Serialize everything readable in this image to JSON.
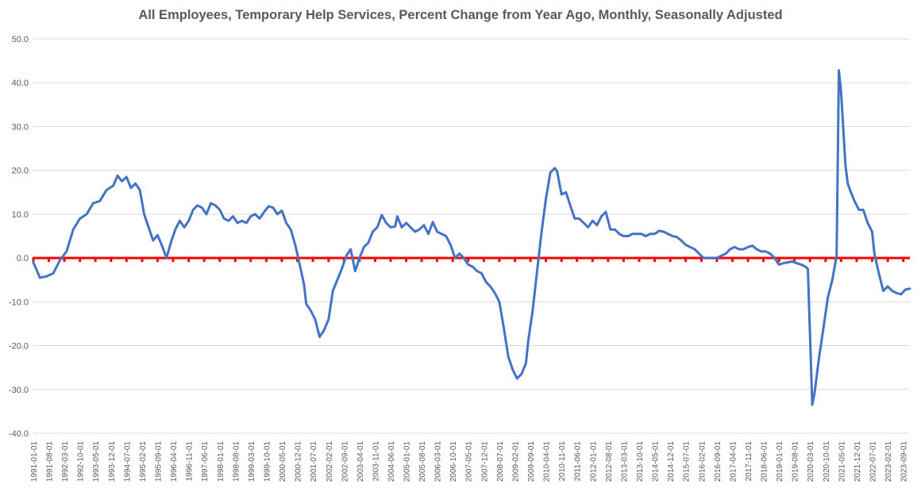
{
  "chart_data": {
    "type": "line",
    "title": "All Employees, Temporary Help Services, Percent Change from Year Ago, Monthly, Seasonally Adjusted",
    "xlabel": "",
    "ylabel": "",
    "ylim": [
      -40,
      50
    ],
    "yticks": [
      "50.0",
      "40.0",
      "30.0",
      "20.0",
      "10.0",
      "0.0",
      "-10.0",
      "-20.0",
      "-30.0",
      "-40.0"
    ],
    "xticks": [
      "1991-01-01",
      "1991-08-01",
      "1992-03-01",
      "1992-10-01",
      "1993-05-01",
      "1993-12-01",
      "1994-07-01",
      "1995-02-01",
      "1995-09-01",
      "1996-04-01",
      "1996-11-01",
      "1997-06-01",
      "1998-01-01",
      "1998-08-01",
      "1999-03-01",
      "1999-10-01",
      "2000-05-01",
      "2000-12-01",
      "2001-07-01",
      "2002-02-01",
      "2002-09-01",
      "2003-04-01",
      "2003-11-01",
      "2004-06-01",
      "2005-01-01",
      "2005-08-01",
      "2006-03-01",
      "2006-10-01",
      "2007-05-01",
      "2007-12-01",
      "2008-07-01",
      "2009-02-01",
      "2009-09-01",
      "2010-04-01",
      "2010-11-01",
      "2011-06-01",
      "2012-01-01",
      "2012-08-01",
      "2013-03-01",
      "2013-10-01",
      "2014-05-01",
      "2014-12-01",
      "2015-07-01",
      "2016-02-01",
      "2016-09-01",
      "2017-04-01",
      "2017-11-01",
      "2018-06-01",
      "2019-01-01",
      "2019-08-01",
      "2020-03-01",
      "2020-10-01",
      "2021-05-01",
      "2021-12-01",
      "2022-07-01",
      "2023-02-01",
      "2023-09-01"
    ],
    "grid": true,
    "legend": "none",
    "reference_line": {
      "y": 0,
      "color": "#ff0000",
      "style": "solid"
    },
    "series": [
      {
        "color": "#4472c4",
        "points": [
          [
            "1991-01-01",
            -1.0
          ],
          [
            "1991-04-01",
            -4.5
          ],
          [
            "1991-07-01",
            -4.2
          ],
          [
            "1991-10-01",
            -3.5
          ],
          [
            "1992-01-01",
            -0.5
          ],
          [
            "1992-04-01",
            1.5
          ],
          [
            "1992-07-01",
            6.5
          ],
          [
            "1992-10-01",
            9.0
          ],
          [
            "1993-01-01",
            10.0
          ],
          [
            "1993-04-01",
            12.5
          ],
          [
            "1993-07-01",
            13.0
          ],
          [
            "1993-10-01",
            15.5
          ],
          [
            "1994-01-01",
            16.5
          ],
          [
            "1994-03-01",
            18.8
          ],
          [
            "1994-05-01",
            17.5
          ],
          [
            "1994-07-01",
            18.5
          ],
          [
            "1994-09-01",
            16.0
          ],
          [
            "1994-11-01",
            17.0
          ],
          [
            "1995-01-01",
            15.5
          ],
          [
            "1995-03-01",
            10.0
          ],
          [
            "1995-05-01",
            7.0
          ],
          [
            "1995-07-01",
            4.0
          ],
          [
            "1995-09-01",
            5.2
          ],
          [
            "1995-11-01",
            2.8
          ],
          [
            "1996-01-01",
            0.0
          ],
          [
            "1996-03-01",
            3.5
          ],
          [
            "1996-05-01",
            6.5
          ],
          [
            "1996-07-01",
            8.5
          ],
          [
            "1996-09-01",
            7.0
          ],
          [
            "1996-11-01",
            8.5
          ],
          [
            "1997-01-01",
            11.0
          ],
          [
            "1997-03-01",
            12.0
          ],
          [
            "1997-05-01",
            11.5
          ],
          [
            "1997-07-01",
            10.0
          ],
          [
            "1997-09-01",
            12.5
          ],
          [
            "1997-11-01",
            12.0
          ],
          [
            "1998-01-01",
            11.0
          ],
          [
            "1998-03-01",
            9.0
          ],
          [
            "1998-05-01",
            8.5
          ],
          [
            "1998-07-01",
            9.5
          ],
          [
            "1998-09-01",
            8.0
          ],
          [
            "1998-11-01",
            8.5
          ],
          [
            "1999-01-01",
            8.0
          ],
          [
            "1999-03-01",
            9.5
          ],
          [
            "1999-05-01",
            10.0
          ],
          [
            "1999-07-01",
            9.0
          ],
          [
            "1999-09-01",
            10.5
          ],
          [
            "1999-11-01",
            11.8
          ],
          [
            "2000-01-01",
            11.5
          ],
          [
            "2000-03-01",
            10.0
          ],
          [
            "2000-05-01",
            10.8
          ],
          [
            "2000-07-01",
            8.0
          ],
          [
            "2000-09-01",
            6.5
          ],
          [
            "2000-11-01",
            3.0
          ],
          [
            "2001-01-01",
            -1.5
          ],
          [
            "2001-03-01",
            -6.0
          ],
          [
            "2001-04-01",
            -10.5
          ],
          [
            "2001-06-01",
            -12.0
          ],
          [
            "2001-08-01",
            -14.0
          ],
          [
            "2001-10-01",
            -18.0
          ],
          [
            "2001-12-01",
            -16.5
          ],
          [
            "2002-02-01",
            -14.0
          ],
          [
            "2002-04-01",
            -7.5
          ],
          [
            "2002-06-01",
            -5.0
          ],
          [
            "2002-08-01",
            -2.5
          ],
          [
            "2002-10-01",
            0.5
          ],
          [
            "2002-12-01",
            2.0
          ],
          [
            "2003-02-01",
            -3.0
          ],
          [
            "2003-04-01",
            0.0
          ],
          [
            "2003-06-01",
            2.5
          ],
          [
            "2003-08-01",
            3.5
          ],
          [
            "2003-10-01",
            6.0
          ],
          [
            "2003-12-01",
            7.0
          ],
          [
            "2004-02-01",
            9.8
          ],
          [
            "2004-04-01",
            8.0
          ],
          [
            "2004-06-01",
            7.0
          ],
          [
            "2004-08-01",
            7.2
          ],
          [
            "2004-09-01",
            9.5
          ],
          [
            "2004-11-01",
            7.0
          ],
          [
            "2005-01-01",
            8.0
          ],
          [
            "2005-03-01",
            7.0
          ],
          [
            "2005-05-01",
            6.0
          ],
          [
            "2005-07-01",
            6.5
          ],
          [
            "2005-09-01",
            7.5
          ],
          [
            "2005-11-01",
            5.5
          ],
          [
            "2006-01-01",
            8.2
          ],
          [
            "2006-03-01",
            6.0
          ],
          [
            "2006-05-01",
            5.5
          ],
          [
            "2006-07-01",
            5.0
          ],
          [
            "2006-09-01",
            3.0
          ],
          [
            "2006-11-01",
            0.0
          ],
          [
            "2007-01-01",
            1.0
          ],
          [
            "2007-03-01",
            0.0
          ],
          [
            "2007-05-01",
            -1.5
          ],
          [
            "2007-07-01",
            -2.0
          ],
          [
            "2007-09-01",
            -3.0
          ],
          [
            "2007-11-01",
            -3.5
          ],
          [
            "2008-01-01",
            -5.5
          ],
          [
            "2008-03-01",
            -6.5
          ],
          [
            "2008-05-01",
            -8.0
          ],
          [
            "2008-07-01",
            -10.0
          ],
          [
            "2008-09-01",
            -16.0
          ],
          [
            "2008-11-01",
            -22.5
          ],
          [
            "2009-01-01",
            -25.5
          ],
          [
            "2009-03-01",
            -27.5
          ],
          [
            "2009-05-01",
            -26.5
          ],
          [
            "2009-07-01",
            -24.0
          ],
          [
            "2009-08-01",
            -19.0
          ],
          [
            "2009-10-01",
            -12.0
          ],
          [
            "2009-12-01",
            -3.0
          ],
          [
            "2010-02-01",
            6.0
          ],
          [
            "2010-04-01",
            13.5
          ],
          [
            "2010-06-01",
            19.5
          ],
          [
            "2010-08-01",
            20.5
          ],
          [
            "2010-09-01",
            19.8
          ],
          [
            "2010-11-01",
            14.5
          ],
          [
            "2011-01-01",
            15.0
          ],
          [
            "2011-03-01",
            12.0
          ],
          [
            "2011-05-01",
            9.0
          ],
          [
            "2011-07-01",
            9.0
          ],
          [
            "2011-09-01",
            8.0
          ],
          [
            "2011-11-01",
            7.0
          ],
          [
            "2012-01-01",
            8.5
          ],
          [
            "2012-03-01",
            7.5
          ],
          [
            "2012-05-01",
            9.5
          ],
          [
            "2012-07-01",
            10.5
          ],
          [
            "2012-09-01",
            6.5
          ],
          [
            "2012-11-01",
            6.5
          ],
          [
            "2013-01-01",
            5.5
          ],
          [
            "2013-03-01",
            5.0
          ],
          [
            "2013-05-01",
            5.0
          ],
          [
            "2013-07-01",
            5.5
          ],
          [
            "2013-09-01",
            5.5
          ],
          [
            "2013-11-01",
            5.5
          ],
          [
            "2014-01-01",
            5.0
          ],
          [
            "2014-03-01",
            5.5
          ],
          [
            "2014-05-01",
            5.5
          ],
          [
            "2014-07-01",
            6.2
          ],
          [
            "2014-09-01",
            6.0
          ],
          [
            "2014-11-01",
            5.5
          ],
          [
            "2015-01-01",
            5.0
          ],
          [
            "2015-03-01",
            4.8
          ],
          [
            "2015-05-01",
            4.0
          ],
          [
            "2015-07-01",
            3.0
          ],
          [
            "2015-09-01",
            2.5
          ],
          [
            "2015-11-01",
            2.0
          ],
          [
            "2016-01-01",
            1.0
          ],
          [
            "2016-03-01",
            0.0
          ],
          [
            "2016-05-01",
            0.0
          ],
          [
            "2016-07-01",
            0.0
          ],
          [
            "2016-09-01",
            0.0
          ],
          [
            "2016-11-01",
            0.5
          ],
          [
            "2017-01-01",
            1.0
          ],
          [
            "2017-03-01",
            2.0
          ],
          [
            "2017-05-01",
            2.5
          ],
          [
            "2017-07-01",
            2.0
          ],
          [
            "2017-09-01",
            2.0
          ],
          [
            "2017-11-01",
            2.5
          ],
          [
            "2018-01-01",
            2.8
          ],
          [
            "2018-03-01",
            2.0
          ],
          [
            "2018-05-01",
            1.5
          ],
          [
            "2018-07-01",
            1.5
          ],
          [
            "2018-09-01",
            1.0
          ],
          [
            "2018-11-01",
            0.0
          ],
          [
            "2019-01-01",
            -1.5
          ],
          [
            "2019-03-01",
            -1.2
          ],
          [
            "2019-05-01",
            -1.0
          ],
          [
            "2019-07-01",
            -0.8
          ],
          [
            "2019-09-01",
            -1.2
          ],
          [
            "2019-11-01",
            -1.5
          ],
          [
            "2020-01-01",
            -2.0
          ],
          [
            "2020-02-01",
            -2.5
          ],
          [
            "2020-04-01",
            -33.5
          ],
          [
            "2020-05-01",
            -31.0
          ],
          [
            "2020-07-01",
            -23.0
          ],
          [
            "2020-09-01",
            -16.0
          ],
          [
            "2020-11-01",
            -9.0
          ],
          [
            "2021-01-01",
            -5.0
          ],
          [
            "2021-03-01",
            0.5
          ],
          [
            "2021-04-01",
            42.8
          ],
          [
            "2021-05-01",
            38.0
          ],
          [
            "2021-07-01",
            21.0
          ],
          [
            "2021-08-01",
            17.0
          ],
          [
            "2021-09-01",
            15.5
          ],
          [
            "2021-11-01",
            13.0
          ],
          [
            "2022-01-01",
            11.0
          ],
          [
            "2022-03-01",
            11.0
          ],
          [
            "2022-05-01",
            8.0
          ],
          [
            "2022-07-01",
            6.0
          ],
          [
            "2022-08-01",
            1.0
          ],
          [
            "2022-10-01",
            -3.5
          ],
          [
            "2022-12-01",
            -7.5
          ],
          [
            "2023-02-01",
            -6.5
          ],
          [
            "2023-04-01",
            -7.5
          ],
          [
            "2023-06-01",
            -8.0
          ],
          [
            "2023-08-01",
            -8.3
          ],
          [
            "2023-10-01",
            -7.2
          ],
          [
            "2023-12-01",
            -7.0
          ]
        ]
      }
    ]
  }
}
